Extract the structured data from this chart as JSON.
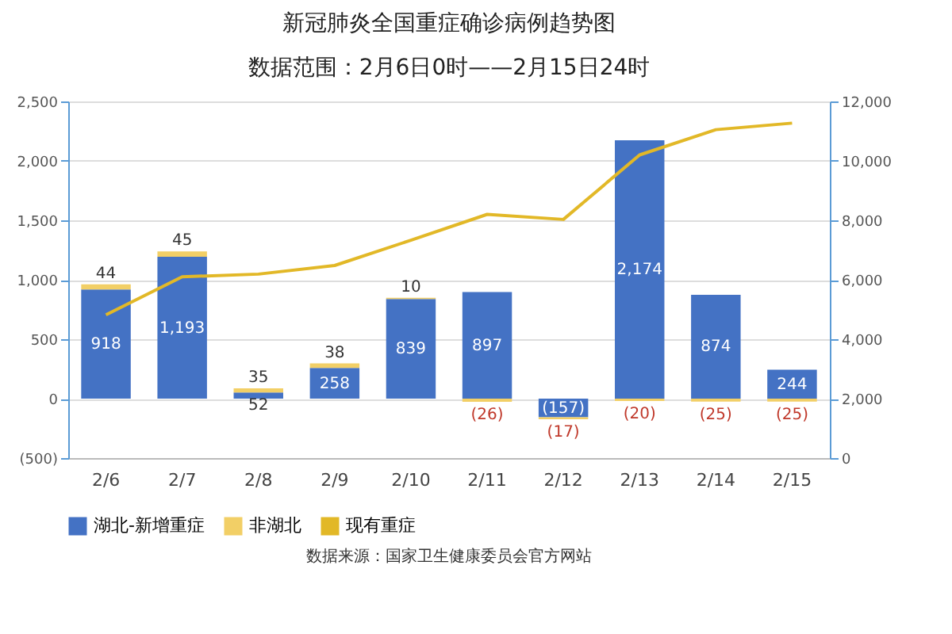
{
  "chart_data": {
    "type": "bar",
    "title": "新冠肺炎全国重症确诊病例趋势图",
    "subtitle": "数据范围：2月6日0时——2月15日24时",
    "categories": [
      "2/6",
      "2/7",
      "2/8",
      "2/9",
      "2/10",
      "2/11",
      "2/12",
      "2/13",
      "2/14",
      "2/15"
    ],
    "stacked": true,
    "series": [
      {
        "name": "湖北-新增重症",
        "color": "#4472c4",
        "values": [
          918,
          1193,
          52,
          258,
          839,
          897,
          -157,
          2174,
          874,
          244
        ],
        "value_labels": [
          "918",
          "1,193",
          "52",
          "258",
          "839",
          "897",
          "(157)",
          "2,174",
          "874",
          "244"
        ]
      },
      {
        "name": "非湖北",
        "color": "#f2cf66",
        "values": [
          44,
          45,
          35,
          38,
          10,
          -26,
          -17,
          -20,
          -25,
          -25
        ],
        "value_labels": [
          "44",
          "45",
          "35",
          "38",
          "10",
          "(26)",
          "(17)",
          "(20)",
          "(25)",
          "(25)"
        ]
      },
      {
        "name": "现有重症",
        "type": "line",
        "axis": "y2",
        "color": "#e2b827",
        "values": [
          4820,
          6100,
          6190,
          6480,
          7330,
          8200,
          8030,
          10200,
          11050,
          11270
        ]
      }
    ],
    "ylim": [
      -500,
      2500
    ],
    "yticks": [
      {
        "value": -500,
        "label": "(500)"
      },
      0,
      500,
      {
        "value": 1000,
        "label": "1,000"
      },
      {
        "value": 1500,
        "label": "1,500"
      },
      {
        "value": 2000,
        "label": "2,000"
      },
      {
        "value": 2500,
        "label": "2,500"
      }
    ],
    "y2lim": [
      0,
      12000
    ],
    "y2ticks": [
      0,
      {
        "value": 2000,
        "label": "2,000"
      },
      {
        "value": 4000,
        "label": "4,000"
      },
      {
        "value": 6000,
        "label": "6,000"
      },
      {
        "value": 8000,
        "label": "8,000"
      },
      {
        "value": 10000,
        "label": "10,000"
      },
      {
        "value": 12000,
        "label": "12,000"
      }
    ],
    "grid": "y",
    "legend": "bottom",
    "annotations": [
      "数据来源：国家卫生健康委员会官方网站"
    ]
  }
}
